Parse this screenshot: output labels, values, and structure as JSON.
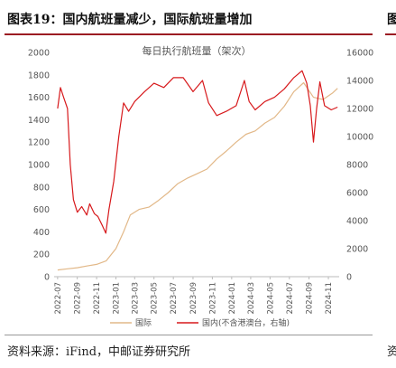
{
  "header": {
    "title": "图表19：国内航班量减少，国际航班量增加",
    "next_title_fragment": "图"
  },
  "footer": {
    "source": "资料来源：iFind，中邮证券研究所",
    "next_source_fragment": "资"
  },
  "chart_data": {
    "type": "line",
    "title": "每日执行航班量（架次）",
    "x_tick_labels": [
      "2022-07",
      "2022-09",
      "2022-11",
      "2023-01",
      "2023-03",
      "2023-05",
      "2023-07",
      "2023-09",
      "2023-11",
      "2024-01",
      "2024-03",
      "2024-05",
      "2024-07",
      "2024-09",
      "2024-11"
    ],
    "y_left": {
      "ticks": [
        0,
        200,
        400,
        600,
        800,
        1000,
        1200,
        1400,
        1600,
        1800,
        2000
      ],
      "range": [
        0,
        2000
      ]
    },
    "y_right": {
      "ticks": [
        0,
        2000,
        4000,
        6000,
        8000,
        10000,
        12000,
        14000,
        16000
      ],
      "range": [
        0,
        16000
      ]
    },
    "grid": false,
    "legend_position": "bottom",
    "series": [
      {
        "name": "国际",
        "axis": "left",
        "color": "#e2b888",
        "points": [
          [
            "2022-07-01",
            60
          ],
          [
            "2022-08-01",
            70
          ],
          [
            "2022-09-01",
            80
          ],
          [
            "2022-10-01",
            95
          ],
          [
            "2022-11-01",
            110
          ],
          [
            "2022-12-01",
            140
          ],
          [
            "2023-01-01",
            250
          ],
          [
            "2023-01-25",
            400
          ],
          [
            "2023-02-15",
            550
          ],
          [
            "2023-03-15",
            600
          ],
          [
            "2023-04-15",
            620
          ],
          [
            "2023-05-15",
            680
          ],
          [
            "2023-06-15",
            750
          ],
          [
            "2023-07-15",
            830
          ],
          [
            "2023-08-15",
            880
          ],
          [
            "2023-09-15",
            920
          ],
          [
            "2023-10-15",
            960
          ],
          [
            "2023-11-15",
            1050
          ],
          [
            "2023-12-15",
            1120
          ],
          [
            "2024-01-15",
            1200
          ],
          [
            "2024-02-15",
            1270
          ],
          [
            "2024-03-15",
            1300
          ],
          [
            "2024-04-15",
            1370
          ],
          [
            "2024-05-15",
            1420
          ],
          [
            "2024-06-15",
            1520
          ],
          [
            "2024-07-15",
            1650
          ],
          [
            "2024-08-15",
            1730
          ],
          [
            "2024-09-15",
            1600
          ],
          [
            "2024-10-15",
            1580
          ],
          [
            "2024-11-15",
            1640
          ],
          [
            "2024-11-30",
            1680
          ]
        ]
      },
      {
        "name": "国内(不含港澳台，右轴)",
        "axis": "right",
        "color": "#d7191c",
        "points": [
          [
            "2022-07-01",
            12000
          ],
          [
            "2022-07-10",
            13500
          ],
          [
            "2022-07-20",
            12800
          ],
          [
            "2022-08-01",
            12000
          ],
          [
            "2022-08-10",
            8000
          ],
          [
            "2022-08-20",
            5500
          ],
          [
            "2022-09-01",
            4600
          ],
          [
            "2022-09-15",
            5000
          ],
          [
            "2022-10-01",
            4400
          ],
          [
            "2022-10-10",
            5200
          ],
          [
            "2022-10-25",
            4500
          ],
          [
            "2022-11-05",
            4300
          ],
          [
            "2022-11-20",
            3600
          ],
          [
            "2022-11-30",
            3100
          ],
          [
            "2022-12-10",
            4800
          ],
          [
            "2022-12-25",
            6800
          ],
          [
            "2023-01-10",
            10000
          ],
          [
            "2023-01-25",
            12400
          ],
          [
            "2023-02-10",
            11800
          ],
          [
            "2023-03-01",
            12500
          ],
          [
            "2023-04-01",
            13200
          ],
          [
            "2023-05-01",
            13800
          ],
          [
            "2023-06-01",
            13500
          ],
          [
            "2023-07-01",
            14200
          ],
          [
            "2023-08-01",
            14200
          ],
          [
            "2023-09-01",
            13200
          ],
          [
            "2023-10-01",
            14000
          ],
          [
            "2023-10-20",
            12400
          ],
          [
            "2023-11-15",
            11500
          ],
          [
            "2023-12-15",
            11800
          ],
          [
            "2024-01-15",
            12200
          ],
          [
            "2024-02-10",
            14000
          ],
          [
            "2024-02-25",
            12500
          ],
          [
            "2024-03-15",
            11900
          ],
          [
            "2024-04-15",
            12500
          ],
          [
            "2024-05-15",
            12800
          ],
          [
            "2024-06-15",
            13400
          ],
          [
            "2024-07-15",
            14200
          ],
          [
            "2024-08-10",
            14700
          ],
          [
            "2024-08-25",
            13800
          ],
          [
            "2024-09-05",
            12200
          ],
          [
            "2024-09-15",
            9600
          ],
          [
            "2024-09-25",
            12000
          ],
          [
            "2024-10-05",
            13900
          ],
          [
            "2024-10-20",
            12200
          ],
          [
            "2024-11-10",
            11900
          ],
          [
            "2024-11-30",
            12100
          ]
        ]
      }
    ]
  }
}
